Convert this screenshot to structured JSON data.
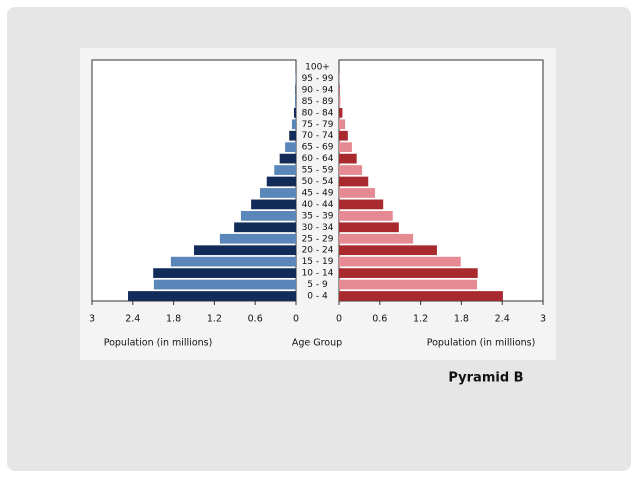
{
  "chart_data": {
    "type": "pyramid",
    "categories": [
      "0 - 4",
      "5 - 9",
      "10 - 14",
      "15 - 19",
      "20 - 24",
      "25 - 29",
      "30 - 34",
      "35 - 39",
      "40 - 44",
      "45 - 49",
      "50 - 54",
      "55 - 59",
      "60 - 64",
      "65 - 69",
      "70 - 74",
      "75 - 79",
      "80 - 84",
      "85 - 89",
      "90 - 94",
      "95 - 99",
      "100+"
    ],
    "series": [
      {
        "side": "left",
        "colors": [
          "#122c5a",
          "#5a86ba"
        ],
        "values": [
          2.47,
          2.09,
          2.1,
          1.84,
          1.5,
          1.12,
          0.91,
          0.81,
          0.66,
          0.53,
          0.43,
          0.32,
          0.24,
          0.16,
          0.1,
          0.06,
          0.03,
          0.015,
          0.01,
          0.005,
          0
        ]
      },
      {
        "side": "right",
        "colors": [
          "#a82a2e",
          "#e58a92"
        ],
        "values": [
          2.41,
          2.03,
          2.04,
          1.79,
          1.44,
          1.09,
          0.88,
          0.79,
          0.65,
          0.53,
          0.43,
          0.34,
          0.26,
          0.19,
          0.13,
          0.09,
          0.05,
          0.02,
          0.01,
          0.005,
          0
        ]
      }
    ],
    "xlim": [
      0,
      3
    ],
    "xticks": [
      0,
      0.6,
      1.2,
      1.8,
      2.4,
      3
    ],
    "x_label_left": "Population (in millions)",
    "category_label": "Age Group",
    "x_label_right": "Population (in millions)",
    "annotation": "Pyramid B"
  }
}
